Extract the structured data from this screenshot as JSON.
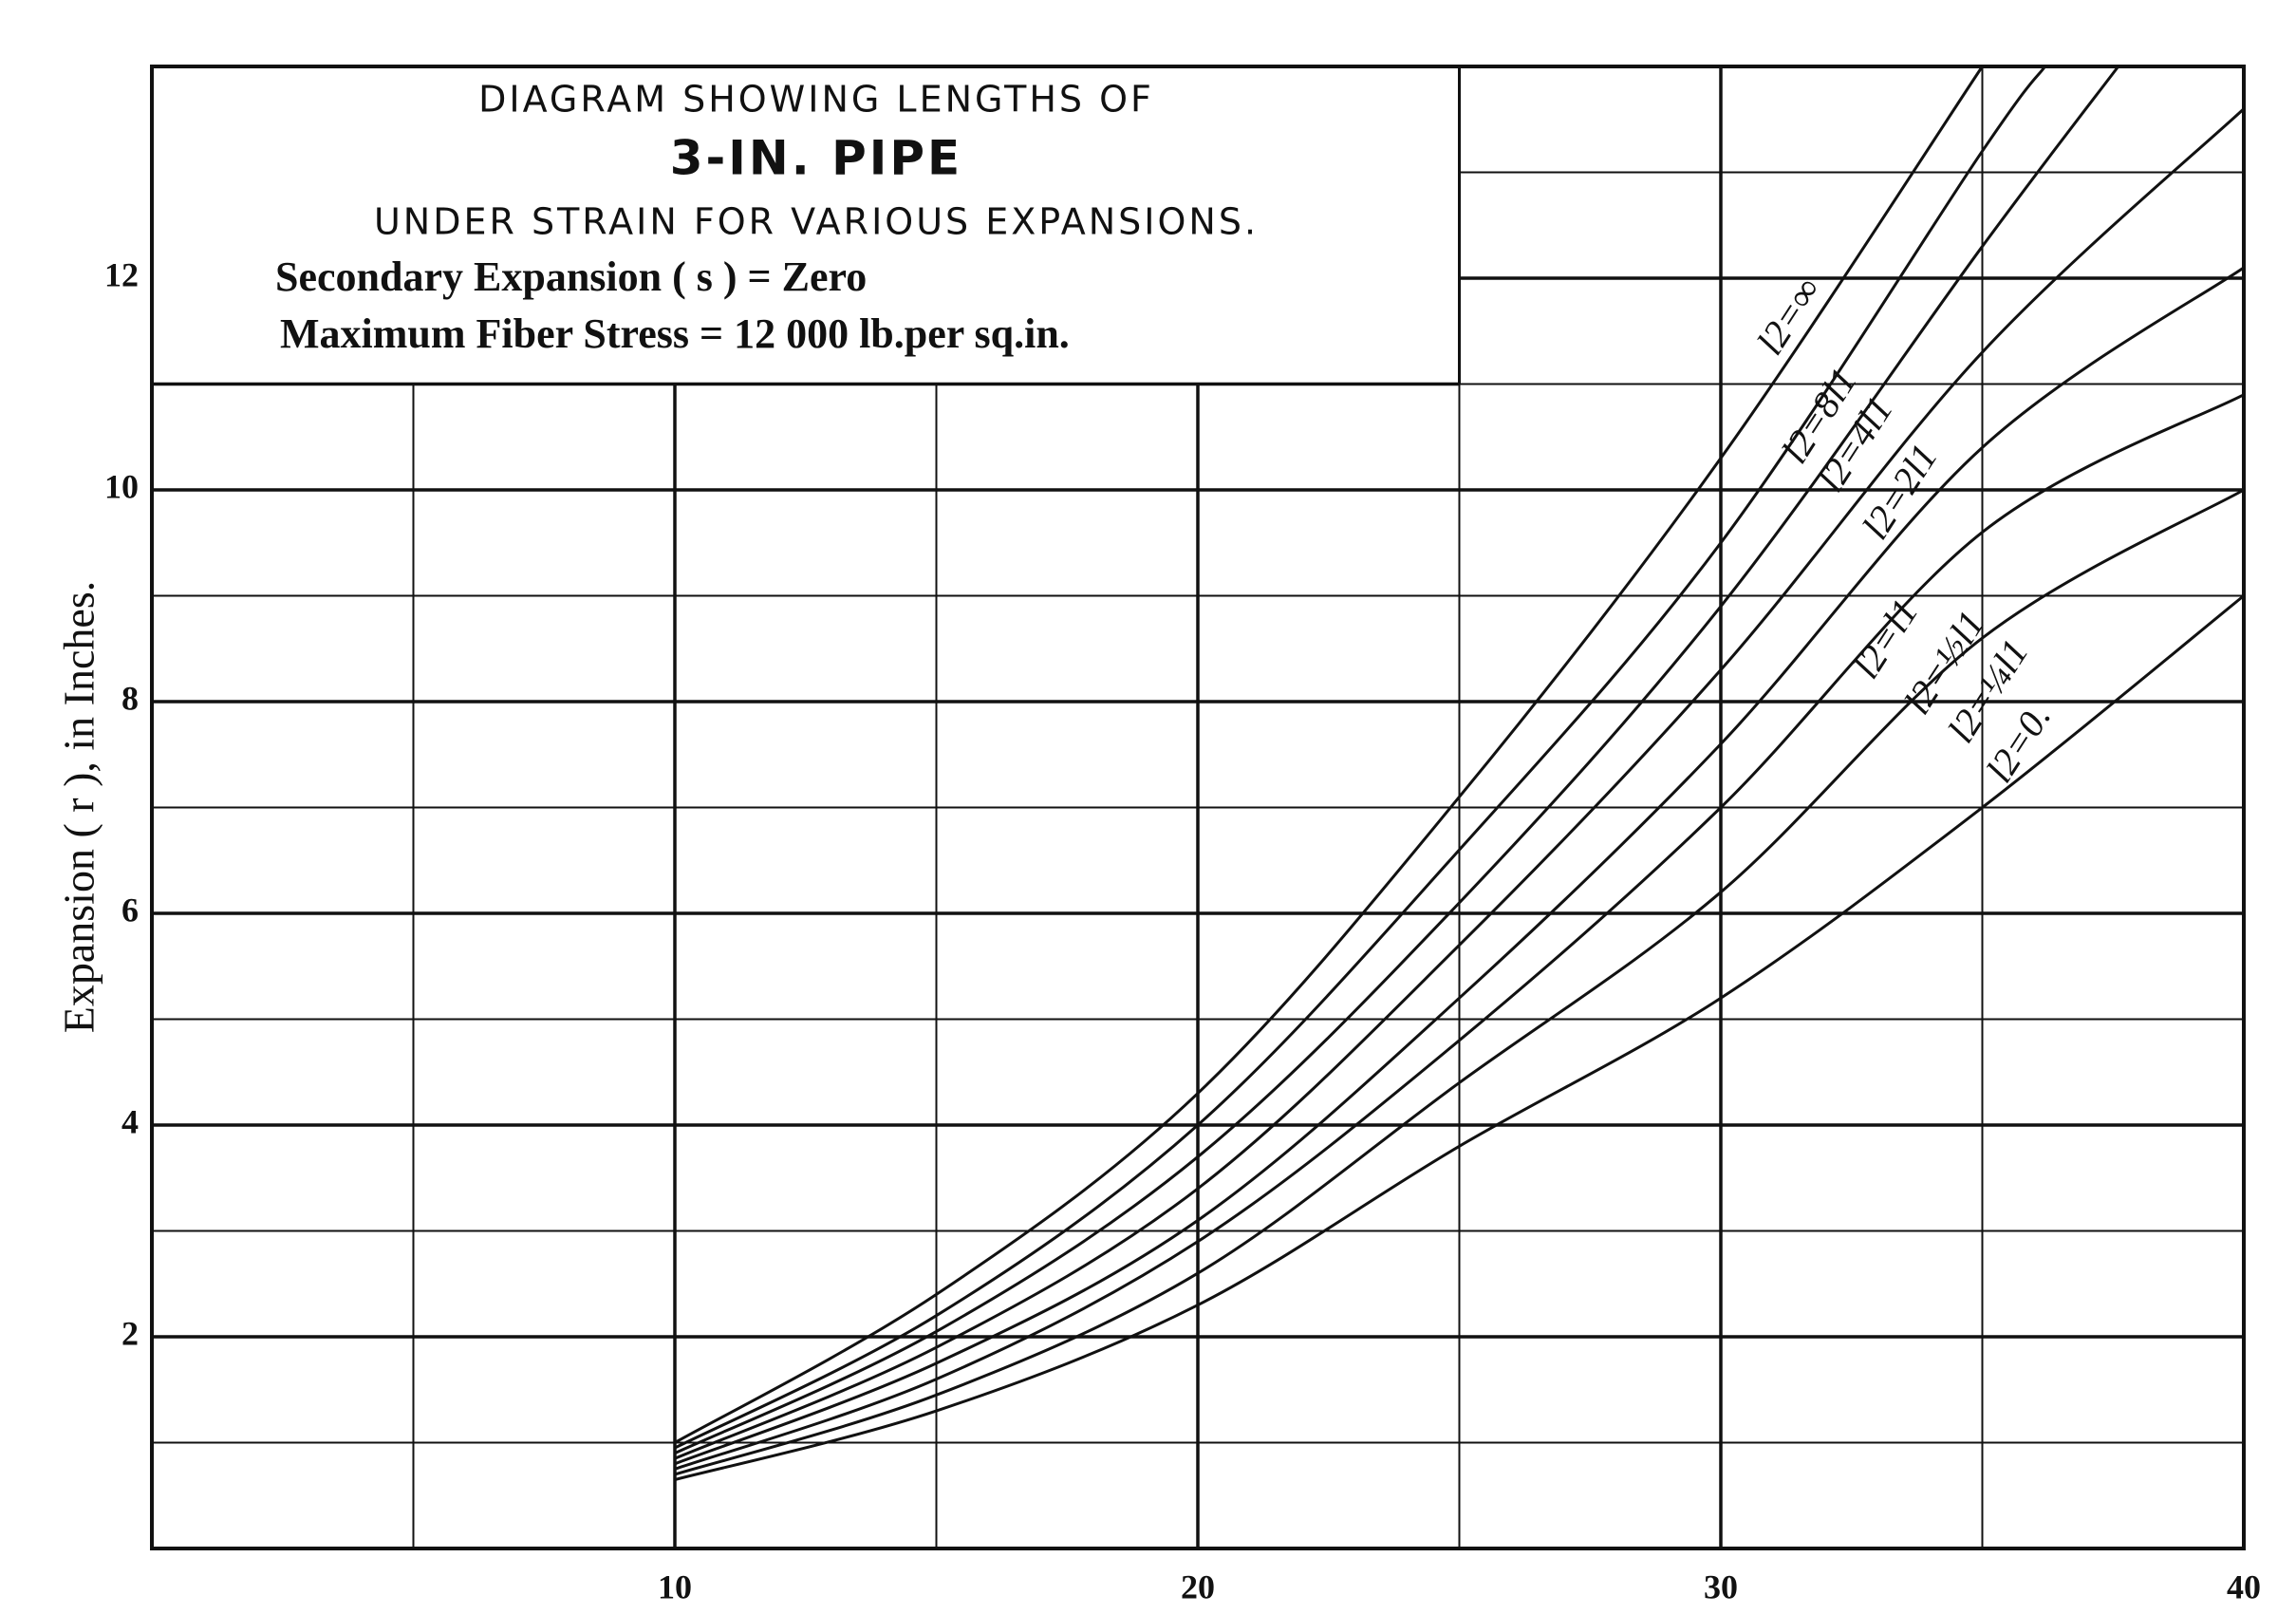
{
  "chart_data": {
    "type": "line",
    "title_lines": [
      "DIAGRAM SHOWING LENGTHS OF",
      "3-IN. PIPE",
      "UNDER STRAIN FOR VARIOUS EXPANSIONS.",
      "Secondary Expansion ( s ) = Zero",
      "Maximum Fiber Stress = 12 000 lb.per sq.in."
    ],
    "y_label": "Expansion ( r ), in Inches.",
    "xlim": [
      0,
      40
    ],
    "ylim": [
      0,
      14
    ],
    "xticks": [
      10,
      20,
      30,
      40
    ],
    "yticks": [
      2,
      4,
      6,
      8,
      10,
      12
    ],
    "minor_xticks": [
      5,
      15,
      25,
      35
    ],
    "minor_yticks": [
      1,
      3,
      5,
      7,
      9,
      11,
      13
    ],
    "grid": true,
    "color": "#111111",
    "series": [
      {
        "name": "l2=∞",
        "x": [
          10,
          15,
          20,
          25,
          30,
          35
        ],
        "values": [
          1.0,
          2.4,
          4.3,
          7.1,
          10.3,
          14
        ]
      },
      {
        "name": "l2=8l1",
        "x": [
          10,
          15,
          20,
          25,
          30,
          35,
          36.2
        ],
        "values": [
          0.95,
          2.2,
          4.0,
          6.6,
          9.5,
          13.2,
          14
        ]
      },
      {
        "name": "l2=4l1",
        "x": [
          10,
          15,
          20,
          25,
          30,
          35,
          37.6
        ],
        "values": [
          0.9,
          2.05,
          3.7,
          6.1,
          8.9,
          12.3,
          14
        ]
      },
      {
        "name": "l2=2l1",
        "x": [
          10,
          15,
          20,
          25,
          30,
          35,
          40
        ],
        "values": [
          0.85,
          1.9,
          3.4,
          5.7,
          8.3,
          11.3,
          13.6
        ]
      },
      {
        "name": "l2=l1",
        "x": [
          10,
          15,
          20,
          25,
          30,
          35,
          40
        ],
        "values": [
          0.8,
          1.75,
          3.1,
          5.2,
          7.6,
          10.4,
          12.1
        ]
      },
      {
        "name": "l2=½l1",
        "x": [
          10,
          15,
          20,
          25,
          30,
          35,
          40
        ],
        "values": [
          0.75,
          1.6,
          2.9,
          4.8,
          7.0,
          9.6,
          10.9
        ]
      },
      {
        "name": "l2=¼l1",
        "x": [
          10,
          15,
          20,
          25,
          30,
          35,
          40
        ],
        "values": [
          0.7,
          1.45,
          2.6,
          4.4,
          6.2,
          8.6,
          10.0
        ]
      },
      {
        "name": "l2=0.",
        "x": [
          10,
          15,
          20,
          25,
          30,
          35,
          40
        ],
        "values": [
          0.65,
          1.3,
          2.3,
          3.8,
          5.2,
          7.0,
          9.0
        ]
      }
    ]
  }
}
